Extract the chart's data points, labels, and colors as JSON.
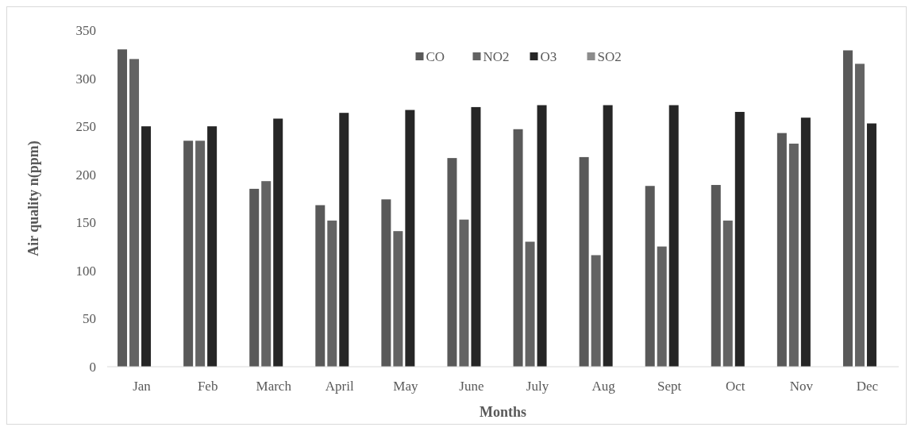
{
  "chart_data": {
    "type": "bar",
    "xlabel": "Months",
    "ylabel": "Air quality  n(ppm)",
    "categories": [
      "Jan",
      "Feb",
      "March",
      "April",
      "May",
      "June",
      "July",
      "Aug",
      "Sept",
      "Oct",
      "Nov",
      "Dec"
    ],
    "series": [
      {
        "name": "CO",
        "color": "#595959",
        "values": [
          330,
          235,
          185,
          168,
          174,
          217,
          247,
          218,
          188,
          189,
          243,
          329
        ]
      },
      {
        "name": "NO2",
        "color": "#636363",
        "values": [
          320,
          235,
          193,
          152,
          141,
          153,
          130,
          116,
          125,
          152,
          232,
          315
        ]
      },
      {
        "name": "O3",
        "color": "#262626",
        "values": [
          250,
          250,
          258,
          264,
          267,
          270,
          272,
          272,
          272,
          265,
          259,
          253
        ]
      },
      {
        "name": "SO2",
        "color": "#8c8c8c",
        "values": [
          null,
          null,
          null,
          null,
          null,
          null,
          null,
          null,
          null,
          null,
          null,
          null
        ]
      }
    ],
    "ylim": [
      0,
      350
    ],
    "yticks": [
      0,
      50,
      100,
      150,
      200,
      250,
      300,
      350
    ],
    "grid": false,
    "legend": "top"
  }
}
